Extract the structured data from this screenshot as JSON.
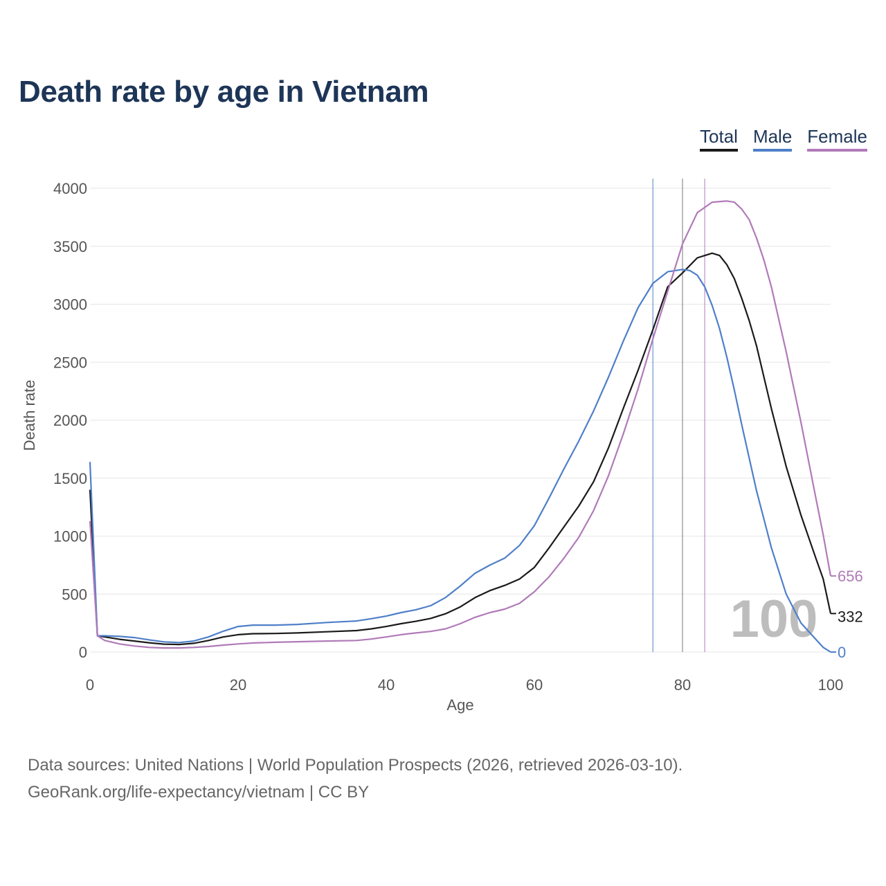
{
  "page": {
    "title": "Death rate by age in Vietnam",
    "source_line1": "Data sources: United Nations | World Population Prospects (2026, retrieved 2026-03-10).",
    "source_line2": "GeoRank.org/life-expectancy/vietnam | CC BY"
  },
  "chart_data": {
    "type": "line",
    "title": "Death rate by age in Vietnam",
    "xlabel": "Age",
    "ylabel": "Death rate",
    "xlim": [
      0,
      100
    ],
    "ylim": [
      0,
      4000
    ],
    "xticks": [
      0,
      20,
      40,
      60,
      80,
      100
    ],
    "yticks": [
      0,
      500,
      1000,
      1500,
      2000,
      2500,
      3000,
      3500,
      4000
    ],
    "grid": true,
    "legend_position": "top-right",
    "watermark": "100",
    "series": [
      {
        "name": "Total",
        "color": "#1a1a1a",
        "end_label": "332",
        "life_expectancy_marker": 80,
        "points": [
          [
            0,
            1400
          ],
          [
            1,
            140
          ],
          [
            2,
            130
          ],
          [
            4,
            110
          ],
          [
            6,
            95
          ],
          [
            8,
            80
          ],
          [
            10,
            68
          ],
          [
            12,
            65
          ],
          [
            14,
            75
          ],
          [
            16,
            100
          ],
          [
            18,
            130
          ],
          [
            20,
            150
          ],
          [
            22,
            158
          ],
          [
            25,
            160
          ],
          [
            28,
            165
          ],
          [
            32,
            175
          ],
          [
            36,
            185
          ],
          [
            38,
            200
          ],
          [
            40,
            220
          ],
          [
            42,
            245
          ],
          [
            44,
            265
          ],
          [
            46,
            290
          ],
          [
            48,
            330
          ],
          [
            50,
            390
          ],
          [
            52,
            470
          ],
          [
            54,
            530
          ],
          [
            56,
            575
          ],
          [
            58,
            630
          ],
          [
            60,
            730
          ],
          [
            62,
            900
          ],
          [
            64,
            1080
          ],
          [
            66,
            1260
          ],
          [
            68,
            1470
          ],
          [
            70,
            1760
          ],
          [
            72,
            2100
          ],
          [
            74,
            2430
          ],
          [
            76,
            2780
          ],
          [
            78,
            3150
          ],
          [
            80,
            3270
          ],
          [
            82,
            3400
          ],
          [
            84,
            3440
          ],
          [
            85,
            3420
          ],
          [
            86,
            3340
          ],
          [
            87,
            3220
          ],
          [
            88,
            3050
          ],
          [
            89,
            2860
          ],
          [
            90,
            2640
          ],
          [
            92,
            2100
          ],
          [
            94,
            1600
          ],
          [
            96,
            1180
          ],
          [
            98,
            810
          ],
          [
            99,
            630
          ],
          [
            100,
            332
          ]
        ]
      },
      {
        "name": "Male",
        "color": "#4e7fc8",
        "end_label": "0",
        "life_expectancy_marker": 76,
        "points": [
          [
            0,
            1640
          ],
          [
            1,
            140
          ],
          [
            2,
            140
          ],
          [
            4,
            135
          ],
          [
            6,
            125
          ],
          [
            8,
            105
          ],
          [
            10,
            88
          ],
          [
            12,
            82
          ],
          [
            14,
            95
          ],
          [
            16,
            130
          ],
          [
            18,
            180
          ],
          [
            20,
            220
          ],
          [
            22,
            232
          ],
          [
            25,
            232
          ],
          [
            28,
            238
          ],
          [
            32,
            255
          ],
          [
            36,
            268
          ],
          [
            38,
            288
          ],
          [
            40,
            310
          ],
          [
            42,
            340
          ],
          [
            44,
            365
          ],
          [
            46,
            400
          ],
          [
            48,
            470
          ],
          [
            50,
            570
          ],
          [
            52,
            680
          ],
          [
            54,
            750
          ],
          [
            56,
            810
          ],
          [
            58,
            920
          ],
          [
            60,
            1090
          ],
          [
            62,
            1330
          ],
          [
            64,
            1580
          ],
          [
            66,
            1820
          ],
          [
            68,
            2080
          ],
          [
            70,
            2370
          ],
          [
            72,
            2680
          ],
          [
            74,
            2970
          ],
          [
            76,
            3180
          ],
          [
            78,
            3280
          ],
          [
            80,
            3300
          ],
          [
            81,
            3290
          ],
          [
            82,
            3250
          ],
          [
            83,
            3150
          ],
          [
            84,
            2990
          ],
          [
            85,
            2790
          ],
          [
            86,
            2540
          ],
          [
            87,
            2260
          ],
          [
            88,
            1960
          ],
          [
            90,
            1390
          ],
          [
            92,
            900
          ],
          [
            94,
            500
          ],
          [
            96,
            250
          ],
          [
            98,
            110
          ],
          [
            99,
            40
          ],
          [
            100,
            0
          ]
        ]
      },
      {
        "name": "Female",
        "color": "#b07ab8",
        "end_label": "656",
        "life_expectancy_marker": 83,
        "points": [
          [
            0,
            1130
          ],
          [
            1,
            140
          ],
          [
            2,
            100
          ],
          [
            4,
            70
          ],
          [
            6,
            52
          ],
          [
            8,
            40
          ],
          [
            10,
            35
          ],
          [
            12,
            35
          ],
          [
            14,
            40
          ],
          [
            16,
            48
          ],
          [
            18,
            60
          ],
          [
            20,
            70
          ],
          [
            22,
            78
          ],
          [
            25,
            84
          ],
          [
            28,
            89
          ],
          [
            32,
            95
          ],
          [
            36,
            100
          ],
          [
            38,
            112
          ],
          [
            40,
            130
          ],
          [
            42,
            150
          ],
          [
            44,
            165
          ],
          [
            46,
            178
          ],
          [
            48,
            200
          ],
          [
            50,
            245
          ],
          [
            52,
            300
          ],
          [
            54,
            340
          ],
          [
            56,
            370
          ],
          [
            58,
            420
          ],
          [
            60,
            520
          ],
          [
            62,
            650
          ],
          [
            64,
            810
          ],
          [
            66,
            990
          ],
          [
            68,
            1220
          ],
          [
            70,
            1520
          ],
          [
            72,
            1880
          ],
          [
            74,
            2270
          ],
          [
            76,
            2700
          ],
          [
            78,
            3110
          ],
          [
            80,
            3520
          ],
          [
            82,
            3790
          ],
          [
            84,
            3880
          ],
          [
            86,
            3890
          ],
          [
            87,
            3880
          ],
          [
            88,
            3820
          ],
          [
            89,
            3730
          ],
          [
            90,
            3570
          ],
          [
            91,
            3380
          ],
          [
            92,
            3150
          ],
          [
            94,
            2590
          ],
          [
            96,
            1980
          ],
          [
            98,
            1330
          ],
          [
            99,
            1010
          ],
          [
            100,
            656
          ]
        ]
      }
    ]
  }
}
